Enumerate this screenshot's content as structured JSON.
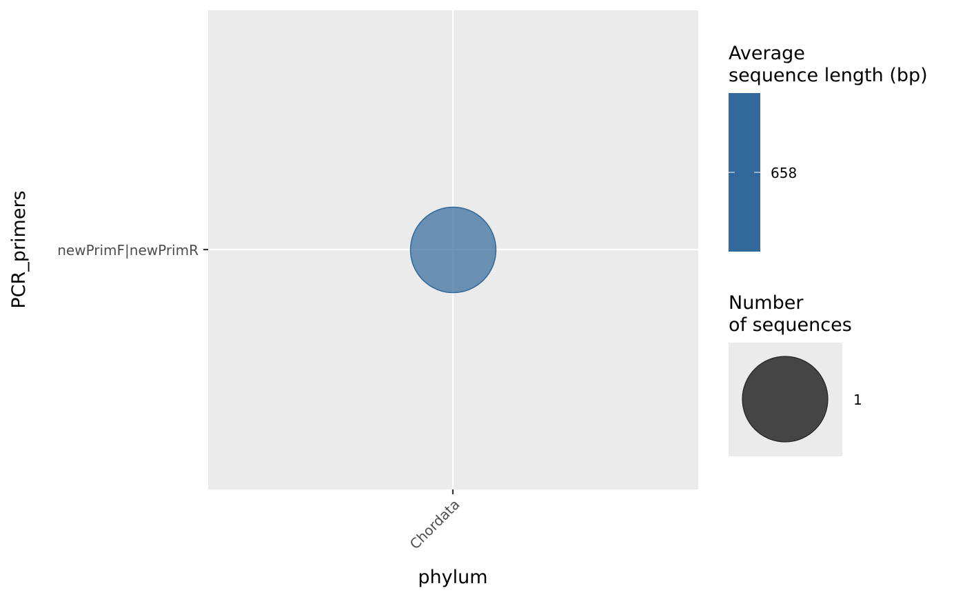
{
  "chart_data": {
    "type": "bubble",
    "x_axis": {
      "label": "phylum",
      "categories": [
        "Chordata"
      ]
    },
    "y_axis": {
      "label": "PCR_primers",
      "categories": [
        "newPrimF|newPrimR"
      ]
    },
    "points": [
      {
        "x": "Chordata",
        "y": "newPrimF|newPrimR",
        "size": 1,
        "color_value": 658
      }
    ],
    "grid": true,
    "panel_background": "#ebebeb",
    "point_color": "#32689a",
    "point_alpha": 0.7,
    "legends": [
      {
        "kind": "colorbar",
        "title_lines": [
          "Average",
          "sequence length (bp)"
        ],
        "values": [
          658
        ],
        "labels": [
          "658"
        ],
        "color": "#32689a"
      },
      {
        "kind": "size",
        "title_lines": [
          "Number",
          "of sequences"
        ],
        "values": [
          1
        ],
        "labels": [
          "1"
        ],
        "color": "#333333"
      }
    ],
    "legend_position": "right"
  }
}
